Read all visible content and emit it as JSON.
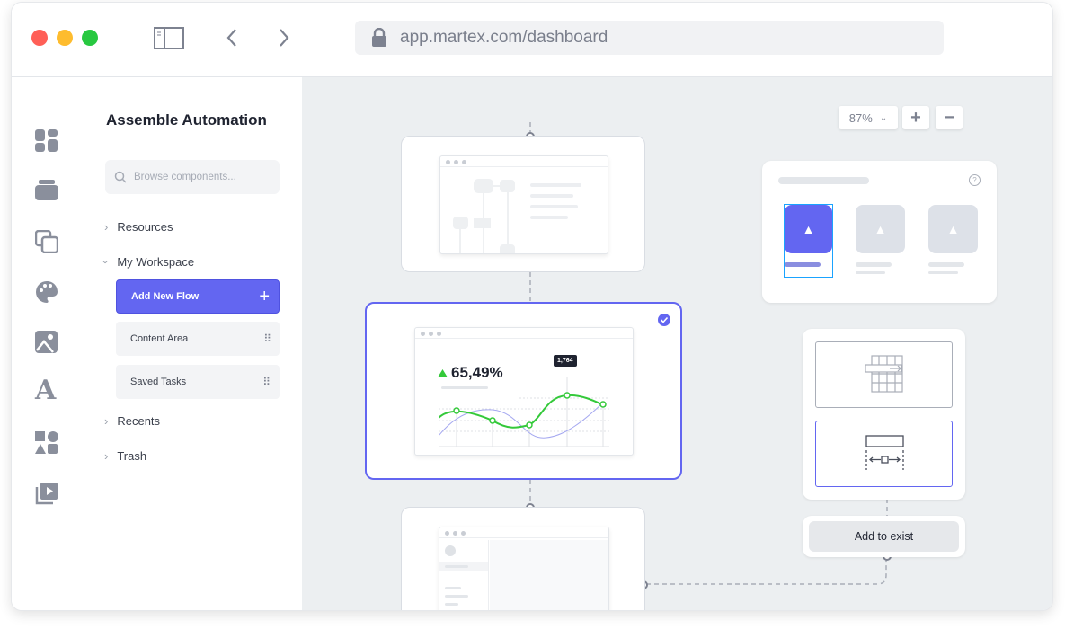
{
  "browser": {
    "url": "app.martex.com/dashboard",
    "traffic_lights": [
      "#ff5f57",
      "#febc2e",
      "#28c840"
    ],
    "icons": [
      "sidebar-toggle-icon",
      "back-icon",
      "forward-icon",
      "lock-icon"
    ]
  },
  "rail": {
    "icons": [
      "dashboard-icon",
      "components-icon",
      "layers-icon",
      "palette-icon",
      "image-icon",
      "typography-icon",
      "shapes-icon",
      "media-icon"
    ]
  },
  "panel": {
    "title": "Assemble Automation",
    "search_placeholder": "Browse components...",
    "tree": [
      {
        "label": "Resources",
        "expanded": false
      },
      {
        "label": "My Workspace",
        "expanded": true
      },
      {
        "label": "Recents",
        "expanded": false
      },
      {
        "label": "Trash",
        "expanded": false
      }
    ],
    "workspace_items": [
      {
        "label": "Add New Flow",
        "primary": true
      },
      {
        "label": "Content Area"
      },
      {
        "label": "Saved Tasks"
      }
    ]
  },
  "canvas": {
    "zoom": "87%",
    "zoom_in": "+",
    "zoom_out": "−",
    "stat_value": "65,49%",
    "tooltip_value": "1,764",
    "add_button": "Add to exist",
    "help": "?",
    "accent": "#6366f1",
    "green": "#34c93a"
  }
}
